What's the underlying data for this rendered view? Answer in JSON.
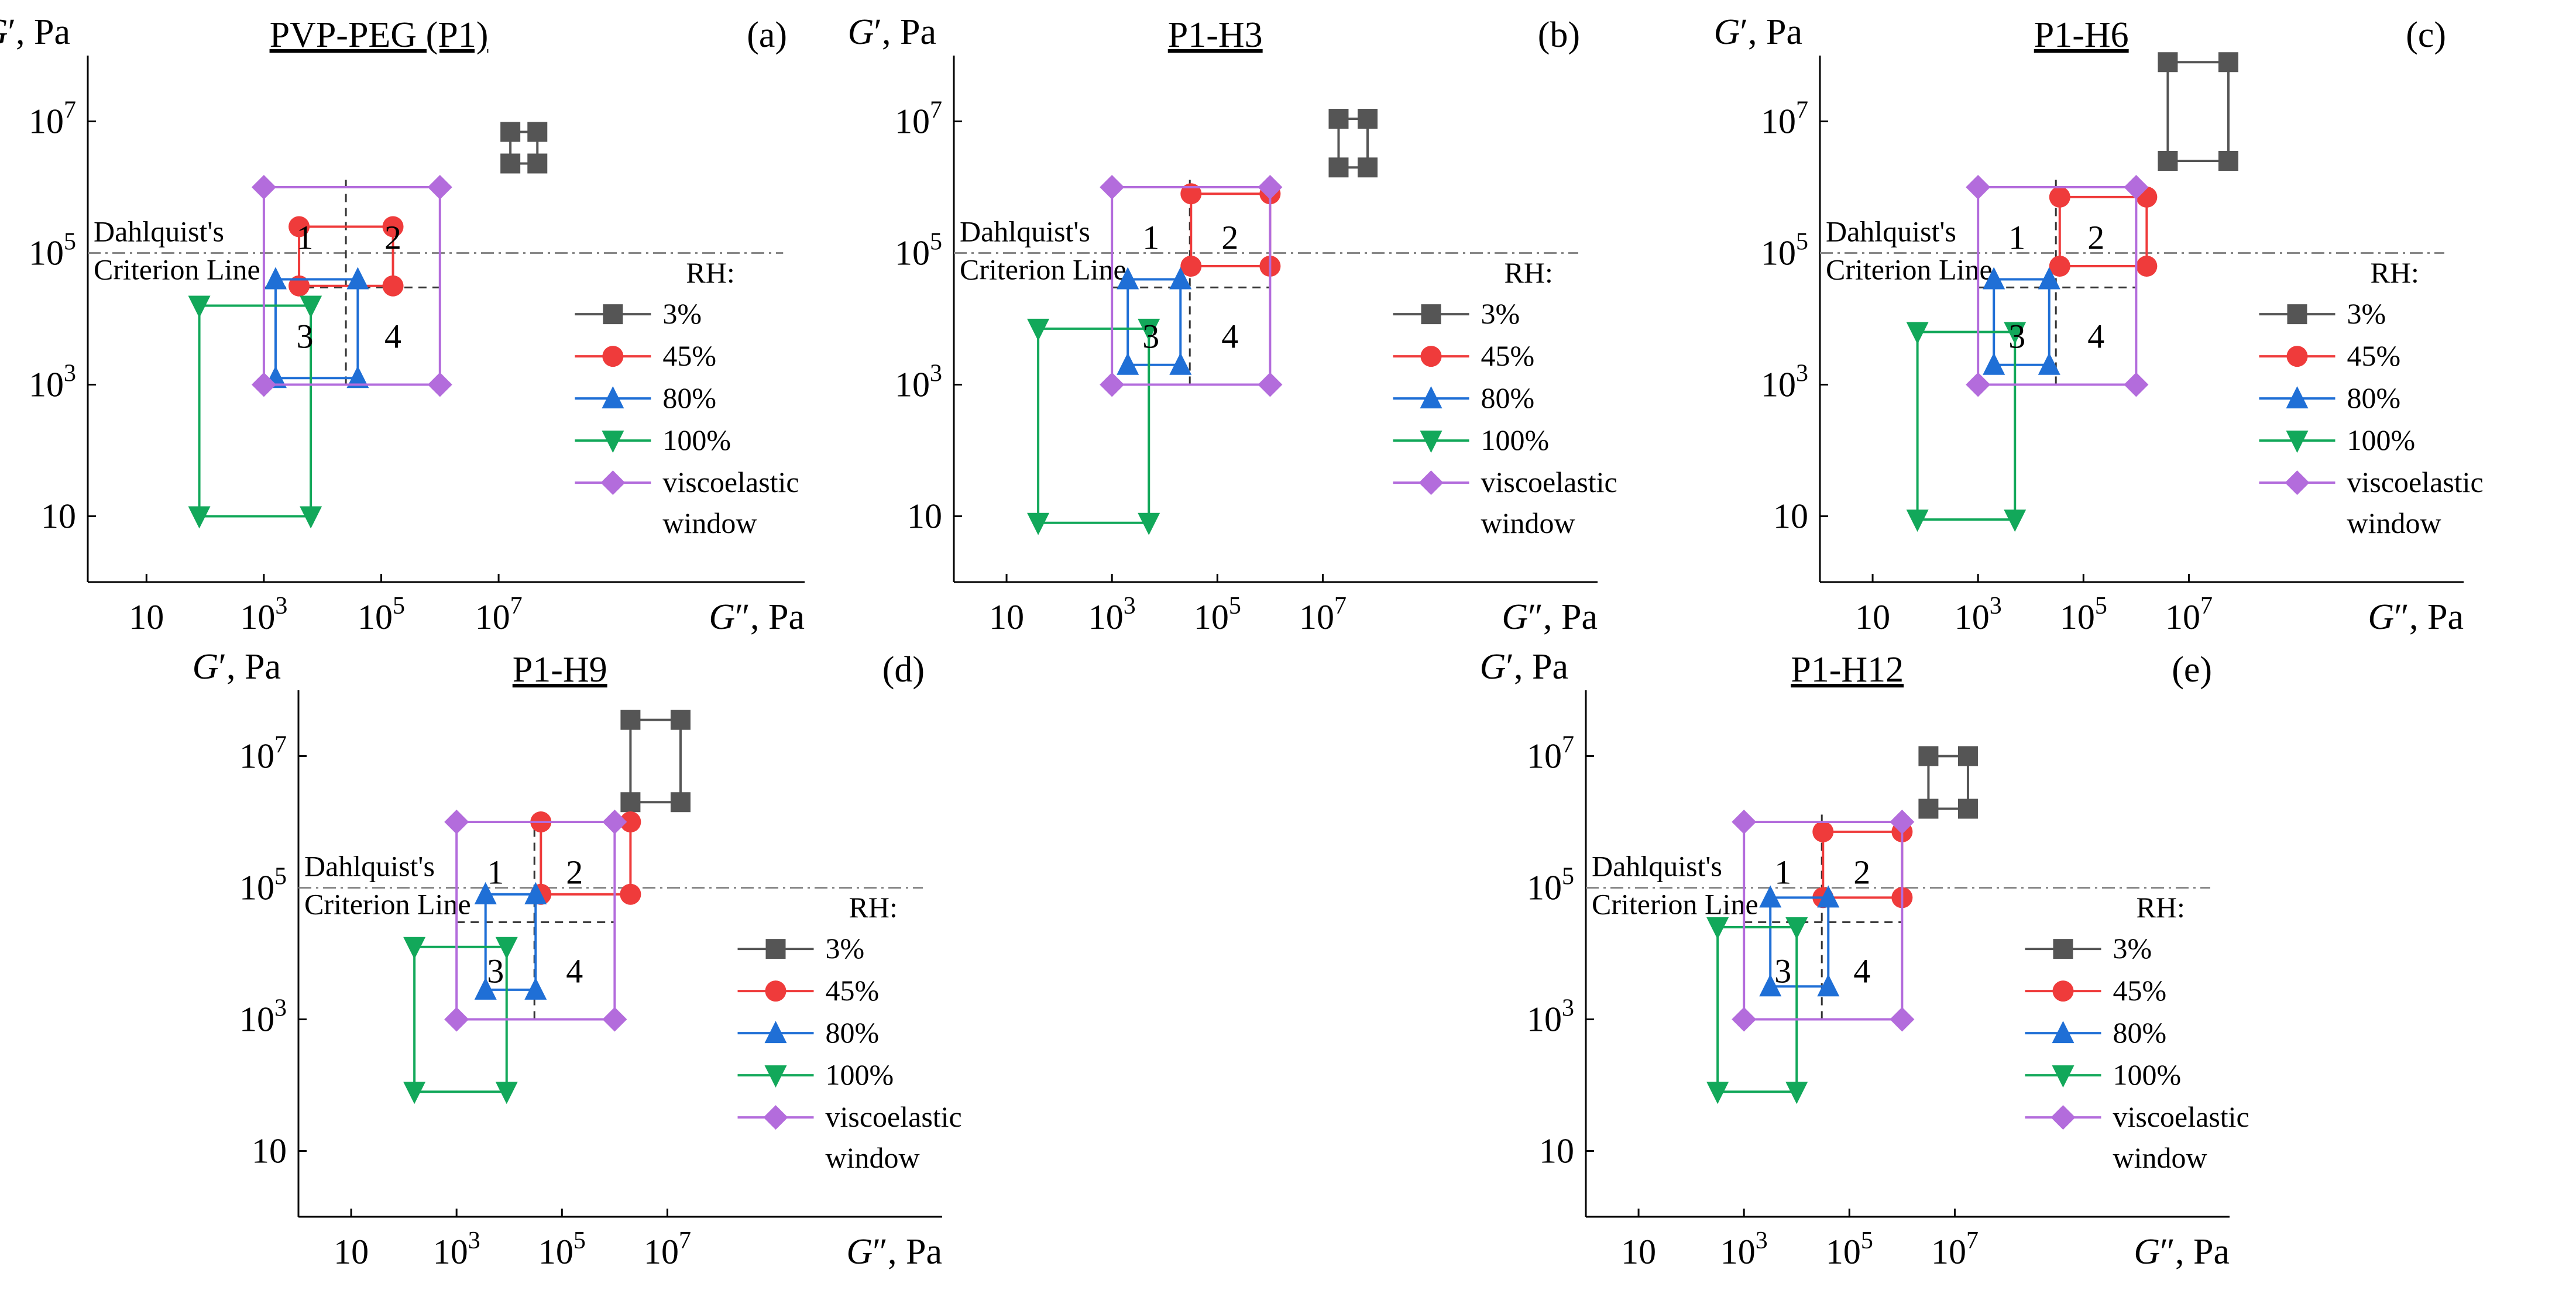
{
  "figure": {
    "colors": {
      "s3": "#555555",
      "s45": "#ef3b3b",
      "s80": "#1f6fd6",
      "s100": "#12a85a",
      "window": "#b36cdc",
      "criterion": "#888888",
      "quad": "#333333",
      "axis": "#000000"
    },
    "legend_header": "RH:",
    "criterion_label": [
      "Dahlquist's",
      "Criterion Line"
    ],
    "axis_labels": {
      "y": [
        "G",
        "′",
        ", Pa"
      ],
      "x": [
        "G",
        "″",
        ", Pa"
      ]
    },
    "tick_labels": [
      {
        "base": "10",
        "exp": ""
      },
      {
        "base": "10",
        "exp": "3"
      },
      {
        "base": "10",
        "exp": "5"
      },
      {
        "base": "10",
        "exp": "7"
      }
    ],
    "region_labels": [
      "1",
      "2",
      "3",
      "4"
    ]
  },
  "chart_data": [
    {
      "type": "line",
      "panel": "(a)",
      "title": "PVP-PEG (P1)",
      "xlabel": "G″, Pa",
      "ylabel": "G′, Pa",
      "xscale": "log",
      "yscale": "log",
      "xlim_log10": [
        0,
        8
      ],
      "ylim_log10": [
        0,
        8
      ],
      "xticks": [
        10,
        1000,
        100000,
        10000000
      ],
      "yticks": [
        10,
        1000,
        100000,
        10000000
      ],
      "criterion_G_prime": 100000,
      "quadrant_divider": {
        "x": 25000,
        "y": 30000,
        "x_from": 1000,
        "y_from": 1000
      },
      "series": [
        {
          "name": "3%",
          "key": "s3",
          "marker": "square",
          "x_log10": [
            7.2,
            7.66
          ],
          "y_log10": [
            6.36,
            6.84
          ],
          "note": "G″ low–high, G′ low–high (log10, read off axes)"
        },
        {
          "name": "45%",
          "key": "s45",
          "marker": "circle",
          "x_log10": [
            3.6,
            5.2
          ],
          "y_log10": [
            4.5,
            5.4
          ]
        },
        {
          "name": "80%",
          "key": "s80",
          "marker": "triangle-up",
          "x_log10": [
            3.2,
            4.6
          ],
          "y_log10": [
            3.1,
            4.6
          ]
        },
        {
          "name": "100%",
          "key": "s100",
          "marker": "triangle-down",
          "x_log10": [
            1.9,
            3.8
          ],
          "y_log10": [
            1.0,
            4.2
          ]
        },
        {
          "name": "viscoelastic window",
          "key": "window",
          "marker": "diamond",
          "x_log10": [
            3.0,
            6.0
          ],
          "y_log10": [
            3.0,
            6.0
          ]
        }
      ]
    },
    {
      "type": "line",
      "panel": "(b)",
      "title": "P1-H3",
      "xlabel": "G″, Pa",
      "ylabel": "G′, Pa",
      "xscale": "log",
      "yscale": "log",
      "xlim_log10": [
        0,
        8
      ],
      "ylim_log10": [
        0,
        8
      ],
      "xticks": [
        10,
        1000,
        100000,
        10000000
      ],
      "yticks": [
        10,
        1000,
        100000,
        10000000
      ],
      "criterion_G_prime": 100000,
      "quadrant_divider": {
        "x": 30000,
        "y": 30000,
        "x_from": 1000,
        "y_from": 1000
      },
      "series": [
        {
          "name": "3%",
          "key": "s3",
          "marker": "square",
          "x_log10": [
            7.3,
            7.85
          ],
          "y_log10": [
            6.3,
            7.04
          ]
        },
        {
          "name": "45%",
          "key": "s45",
          "marker": "circle",
          "x_log10": [
            4.5,
            6.0
          ],
          "y_log10": [
            4.8,
            5.9
          ]
        },
        {
          "name": "80%",
          "key": "s80",
          "marker": "triangle-up",
          "x_log10": [
            3.3,
            4.3
          ],
          "y_log10": [
            3.3,
            4.6
          ]
        },
        {
          "name": "100%",
          "key": "s100",
          "marker": "triangle-down",
          "x_log10": [
            1.6,
            3.7
          ],
          "y_log10": [
            0.9,
            3.85
          ]
        },
        {
          "name": "viscoelastic window",
          "key": "window",
          "marker": "diamond",
          "x_log10": [
            3.0,
            6.0
          ],
          "y_log10": [
            3.0,
            6.0
          ]
        }
      ]
    },
    {
      "type": "line",
      "panel": "(c)",
      "title": "P1-H6",
      "xlabel": "G″, Pa",
      "ylabel": "G′, Pa",
      "xscale": "log",
      "yscale": "log",
      "xlim_log10": [
        0,
        8
      ],
      "ylim_log10": [
        0,
        8
      ],
      "xticks": [
        10,
        1000,
        100000,
        10000000
      ],
      "yticks": [
        10,
        1000,
        100000,
        10000000
      ],
      "criterion_G_prime": 100000,
      "quadrant_divider": {
        "x": 30000,
        "y": 30000,
        "x_from": 1000,
        "y_from": 1000
      },
      "series": [
        {
          "name": "3%",
          "key": "s3",
          "marker": "square",
          "x_log10": [
            6.6,
            7.75
          ],
          "y_log10": [
            6.4,
            7.9
          ]
        },
        {
          "name": "45%",
          "key": "s45",
          "marker": "circle",
          "x_log10": [
            4.55,
            6.2
          ],
          "y_log10": [
            4.8,
            5.85
          ]
        },
        {
          "name": "80%",
          "key": "s80",
          "marker": "triangle-up",
          "x_log10": [
            3.3,
            4.35
          ],
          "y_log10": [
            3.3,
            4.6
          ]
        },
        {
          "name": "100%",
          "key": "s100",
          "marker": "triangle-down",
          "x_log10": [
            1.85,
            3.7
          ],
          "y_log10": [
            0.95,
            3.8
          ]
        },
        {
          "name": "viscoelastic window",
          "key": "window",
          "marker": "diamond",
          "x_log10": [
            3.0,
            6.0
          ],
          "y_log10": [
            3.0,
            6.0
          ]
        }
      ]
    },
    {
      "type": "line",
      "panel": "(d)",
      "title": "P1-H9",
      "xlabel": "G″, Pa",
      "ylabel": "G′, Pa",
      "xscale": "log",
      "yscale": "log",
      "xlim_log10": [
        0,
        8
      ],
      "ylim_log10": [
        0,
        8
      ],
      "xticks": [
        10,
        1000,
        100000,
        10000000
      ],
      "yticks": [
        10,
        1000,
        100000,
        10000000
      ],
      "criterion_G_prime": 100000,
      "quadrant_divider": {
        "x": 30000,
        "y": 30000,
        "x_from": 1000,
        "y_from": 1000
      },
      "series": [
        {
          "name": "3%",
          "key": "s3",
          "marker": "square",
          "x_log10": [
            6.3,
            7.25
          ],
          "y_log10": [
            6.3,
            7.55
          ]
        },
        {
          "name": "45%",
          "key": "s45",
          "marker": "circle",
          "x_log10": [
            4.6,
            6.3
          ],
          "y_log10": [
            4.9,
            6.0
          ]
        },
        {
          "name": "80%",
          "key": "s80",
          "marker": "triangle-up",
          "x_log10": [
            3.55,
            4.5
          ],
          "y_log10": [
            3.45,
            4.9
          ]
        },
        {
          "name": "100%",
          "key": "s100",
          "marker": "triangle-down",
          "x_log10": [
            2.2,
            3.95
          ],
          "y_log10": [
            1.9,
            4.1
          ]
        },
        {
          "name": "viscoelastic window",
          "key": "window",
          "marker": "diamond",
          "x_log10": [
            3.0,
            6.0
          ],
          "y_log10": [
            3.0,
            6.0
          ]
        }
      ]
    },
    {
      "type": "line",
      "panel": "(e)",
      "title": "P1-H12",
      "xlabel": "G″, Pa",
      "ylabel": "G′, Pa",
      "xscale": "log",
      "yscale": "log",
      "xlim_log10": [
        0,
        8
      ],
      "ylim_log10": [
        0,
        8
      ],
      "xticks": [
        10,
        1000,
        100000,
        10000000
      ],
      "yticks": [
        10,
        1000,
        100000,
        10000000
      ],
      "criterion_G_prime": 100000,
      "quadrant_divider": {
        "x": 30000,
        "y": 30000,
        "x_from": 1000,
        "y_from": 1000
      },
      "series": [
        {
          "name": "3%",
          "key": "s3",
          "marker": "square",
          "x_log10": [
            6.5,
            7.25
          ],
          "y_log10": [
            6.2,
            7.0
          ]
        },
        {
          "name": "45%",
          "key": "s45",
          "marker": "circle",
          "x_log10": [
            4.5,
            6.0
          ],
          "y_log10": [
            4.85,
            5.85
          ]
        },
        {
          "name": "80%",
          "key": "s80",
          "marker": "triangle-up",
          "x_log10": [
            3.5,
            4.6
          ],
          "y_log10": [
            3.5,
            4.85
          ]
        },
        {
          "name": "100%",
          "key": "s100",
          "marker": "triangle-down",
          "x_log10": [
            2.5,
            4.0
          ],
          "y_log10": [
            1.9,
            4.4
          ]
        },
        {
          "name": "viscoelastic window",
          "key": "window",
          "marker": "diamond",
          "x_log10": [
            3.0,
            6.0
          ],
          "y_log10": [
            3.0,
            6.0
          ]
        }
      ]
    }
  ]
}
